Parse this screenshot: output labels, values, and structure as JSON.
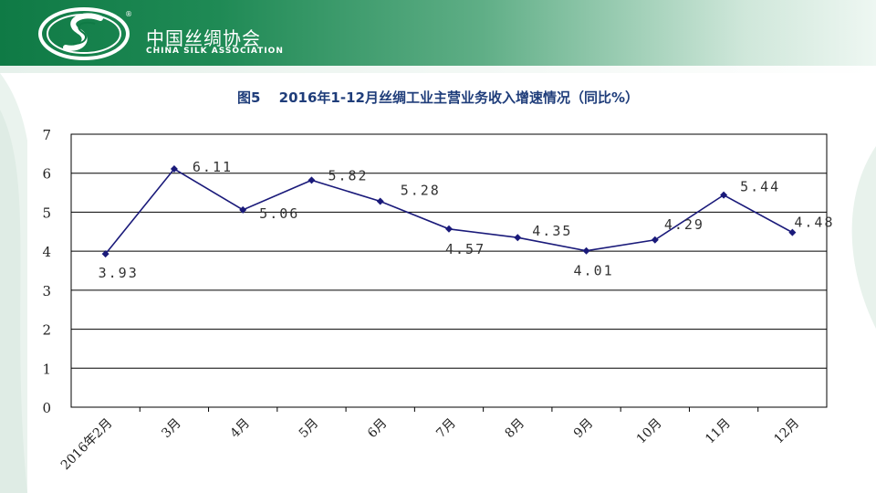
{
  "header": {
    "org_name_cn": "中国丝绸协会",
    "org_name_en": "CHINA SILK ASSOCIATION",
    "logo_mark": "®"
  },
  "colors": {
    "header_green": "#0f7a45",
    "series": "#1a1a7a",
    "title": "#1f3d7a"
  },
  "chart_data": {
    "type": "line",
    "title": "图5　 2016年1-12月丝绸工业主营业务收入增速情况（同比%）",
    "categories": [
      "2016年2月",
      "3月",
      "4月",
      "5月",
      "6月",
      "7月",
      "8月",
      "9月",
      "10月",
      "11月",
      "12月"
    ],
    "series": [
      {
        "values": [
          3.93,
          6.11,
          5.06,
          5.82,
          5.28,
          4.57,
          4.35,
          4.01,
          4.29,
          5.44,
          4.48
        ]
      }
    ],
    "data_labels": [
      "3.93",
      "6.11",
      "5.06",
      "5.82",
      "5.28",
      "4.57",
      "4.35",
      "4.01",
      "4.29",
      "5.44",
      "4.48"
    ],
    "y_ticks": [
      "0",
      "1",
      "2",
      "3",
      "4",
      "5",
      "6",
      "7"
    ],
    "ylim": [
      0,
      7
    ],
    "grid": true,
    "legend": "none"
  }
}
